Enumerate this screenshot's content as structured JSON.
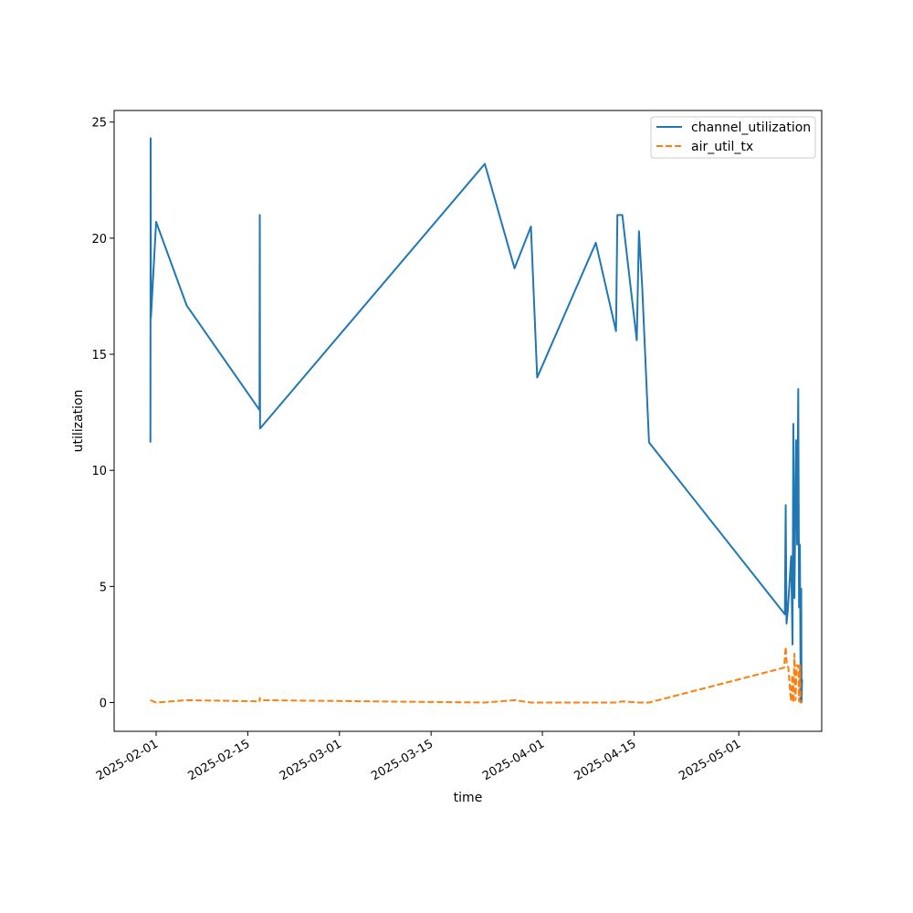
{
  "chart_data": {
    "type": "line",
    "title": "",
    "xlabel": "time",
    "ylabel": "utilization",
    "x_type": "date",
    "xlim": [
      "2025-01-25T14:00",
      "2025-05-13T16:00"
    ],
    "ylim": [
      -1.24,
      25.5
    ],
    "x_ticks": [
      {
        "date": "2025-02-01",
        "label": "2025-02-01"
      },
      {
        "date": "2025-02-15",
        "label": "2025-02-15"
      },
      {
        "date": "2025-03-01",
        "label": "2025-03-01"
      },
      {
        "date": "2025-03-15",
        "label": "2025-03-15"
      },
      {
        "date": "2025-04-01",
        "label": "2025-04-01"
      },
      {
        "date": "2025-04-15",
        "label": "2025-04-15"
      },
      {
        "date": "2025-05-01",
        "label": "2025-05-01"
      }
    ],
    "y_ticks": [
      0,
      5,
      10,
      15,
      20,
      25
    ],
    "grid": false,
    "legend_position": "top-right",
    "series": [
      {
        "name": "channel_utilization",
        "color": "#1f77b4",
        "dash": "solid",
        "points": [
          [
            "2025-01-31T03:00",
            11.2
          ],
          [
            "2025-01-31T04:00",
            24.3
          ],
          [
            "2025-01-31T05:00",
            16.6
          ],
          [
            "2025-02-01T00:00",
            20.7
          ],
          [
            "2025-02-05T16:00",
            17.1
          ],
          [
            "2025-02-16T19:00",
            12.6
          ],
          [
            "2025-02-16T20:00",
            21.0
          ],
          [
            "2025-02-16T21:00",
            11.8
          ],
          [
            "2025-03-23T05:00",
            23.2
          ],
          [
            "2025-03-27T18:00",
            18.7
          ],
          [
            "2025-03-30T06:00",
            20.5
          ],
          [
            "2025-03-31T05:00",
            14.0
          ],
          [
            "2025-04-09T04:00",
            19.8
          ],
          [
            "2025-04-12T06:00",
            16.0
          ],
          [
            "2025-04-12T11:00",
            21.0
          ],
          [
            "2025-04-13T05:00",
            21.0
          ],
          [
            "2025-04-15T10:00",
            15.6
          ],
          [
            "2025-04-15T18:00",
            20.3
          ],
          [
            "2025-04-16T06:00",
            17.9
          ],
          [
            "2025-04-17T07:00",
            11.2
          ],
          [
            "2025-05-08T01:00",
            3.8
          ],
          [
            "2025-05-08T04:00",
            8.5
          ],
          [
            "2025-05-08T07:00",
            3.4
          ],
          [
            "2025-05-08T12:00",
            4.0
          ],
          [
            "2025-05-09T00:00",
            6.3
          ],
          [
            "2025-05-09T05:00",
            2.5
          ],
          [
            "2025-05-09T08:00",
            12.0
          ],
          [
            "2025-05-09T12:00",
            4.5
          ],
          [
            "2025-05-09T18:00",
            11.3
          ],
          [
            "2025-05-09T22:00",
            6.8
          ],
          [
            "2025-05-10T02:00",
            13.5
          ],
          [
            "2025-05-10T05:00",
            4.1
          ],
          [
            "2025-05-10T08:00",
            6.8
          ],
          [
            "2025-05-10T11:00",
            0.0
          ],
          [
            "2025-05-10T13:00",
            4.9
          ],
          [
            "2025-05-10T14:00",
            0.0
          ],
          [
            "2025-05-10T16:00",
            1.0
          ]
        ]
      },
      {
        "name": "air_util_tx",
        "color": "#ff7f0e",
        "dash": "dashed",
        "points": [
          [
            "2025-01-31T03:00",
            0.1
          ],
          [
            "2025-02-01T00:00",
            0.0
          ],
          [
            "2025-02-05T16:00",
            0.1
          ],
          [
            "2025-02-16T19:00",
            0.05
          ],
          [
            "2025-02-16T20:00",
            0.2
          ],
          [
            "2025-02-16T21:00",
            0.1
          ],
          [
            "2025-03-23T05:00",
            0.0
          ],
          [
            "2025-03-27T18:00",
            0.1
          ],
          [
            "2025-03-30T06:00",
            0.0
          ],
          [
            "2025-04-12T06:00",
            0.0
          ],
          [
            "2025-04-13T05:00",
            0.05
          ],
          [
            "2025-04-15T18:00",
            0.0
          ],
          [
            "2025-04-17T07:00",
            0.0
          ],
          [
            "2025-05-07T22:00",
            1.5
          ],
          [
            "2025-05-08T04:00",
            2.4
          ],
          [
            "2025-05-08T08:00",
            1.6
          ],
          [
            "2025-05-08T14:00",
            1.5
          ],
          [
            "2025-05-08T20:00",
            0.5
          ],
          [
            "2025-05-09T00:00",
            0.05
          ],
          [
            "2025-05-09T04:00",
            1.2
          ],
          [
            "2025-05-09T08:00",
            0.0
          ],
          [
            "2025-05-09T12:00",
            2.1
          ],
          [
            "2025-05-09T16:00",
            0.1
          ],
          [
            "2025-05-09T20:00",
            1.6
          ],
          [
            "2025-05-10T02:00",
            1.6
          ],
          [
            "2025-05-10T05:00",
            0.05
          ],
          [
            "2025-05-10T08:00",
            1.6
          ],
          [
            "2025-05-10T11:00",
            0.0
          ],
          [
            "2025-05-10T16:00",
            0.0
          ]
        ]
      }
    ]
  }
}
